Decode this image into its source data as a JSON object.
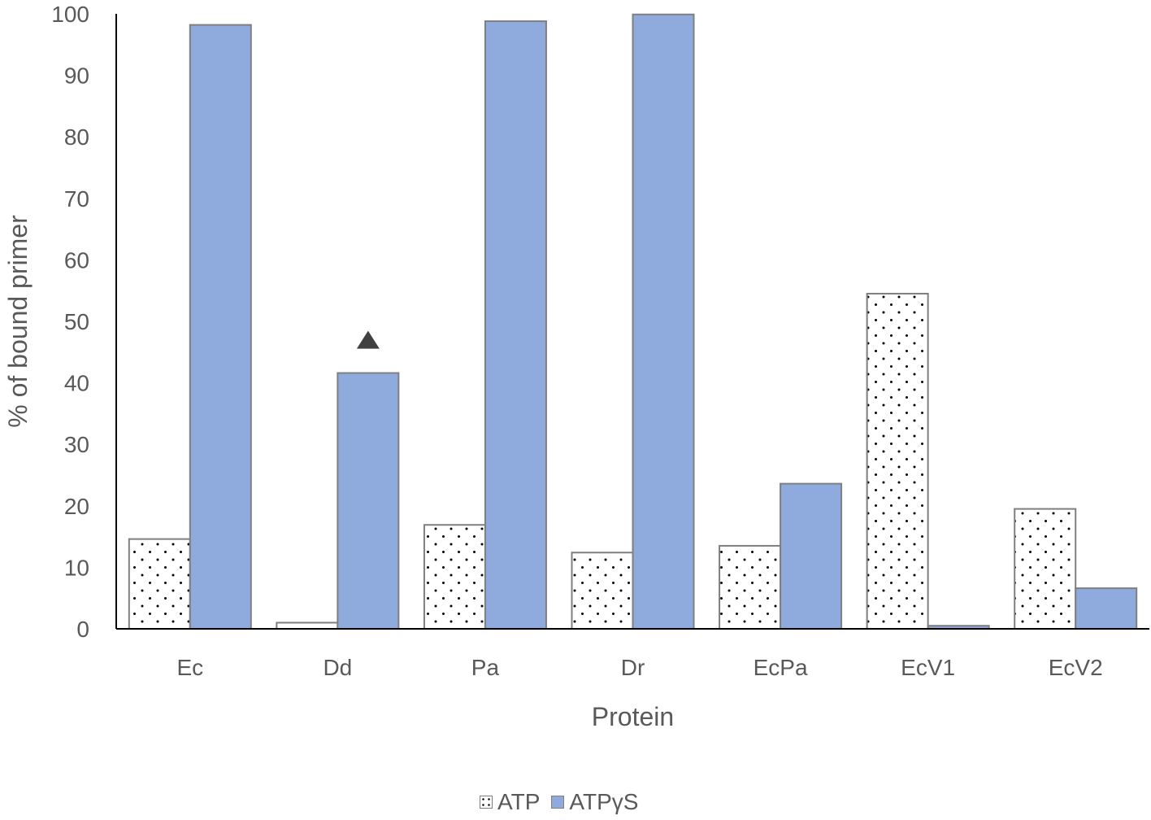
{
  "chart_data": {
    "type": "bar",
    "title": "",
    "xlabel": "Protein",
    "ylabel": "% of bound primer",
    "categories": [
      "Ec",
      "Dd",
      "Pa",
      "Dr",
      "EcPa",
      "EcV1",
      "EcV2"
    ],
    "series": [
      {
        "name": "ATP",
        "values": [
          14.6,
          1.0,
          16.9,
          12.4,
          13.5,
          54.5,
          19.5
        ],
        "fill": "#ffffff",
        "pattern": "dots"
      },
      {
        "name": "ATPγS",
        "values": [
          98.2,
          41.6,
          98.8,
          99.9,
          23.6,
          0.5,
          6.6
        ],
        "fill": "#8faadc",
        "pattern": "solid"
      }
    ],
    "ylim": [
      0,
      100
    ],
    "yticks": [
      "0",
      "10",
      "20",
      "30",
      "40",
      "50",
      "60",
      "70",
      "80",
      "90",
      "100"
    ],
    "annotations": [
      {
        "symbol": "triangle",
        "category": "Dd",
        "series": "ATPγS",
        "value": 47
      }
    ],
    "colors": {
      "atp_fill": "#ffffff",
      "atpgs_fill": "#8faadc",
      "bar_border": "#7f7f7f",
      "text": "#595959",
      "axis": "#000000"
    },
    "grid": false,
    "legend": "bottom-center"
  }
}
